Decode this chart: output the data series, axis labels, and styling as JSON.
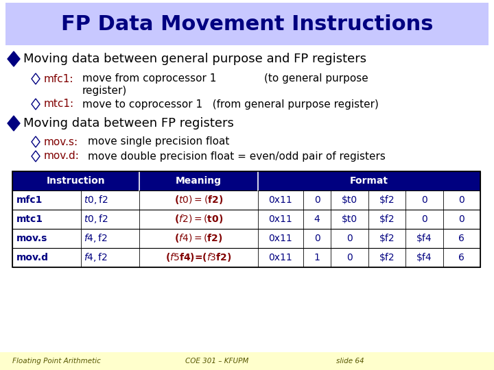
{
  "title": "FP Data Movement Instructions",
  "title_bg": "#c8c8ff",
  "slide_bg": "#ffffff",
  "footer_bg": "#ffffcc",
  "footer_text1": "Floating Point Arithmetic",
  "footer_text2": "COE 301 – KFUPM",
  "footer_text3": "slide 64",
  "dark_blue": "#000080",
  "dark_red": "#800000",
  "black": "#000000",
  "table_header_bg": "#000080",
  "table_rows": [
    {
      "instr": "mfc1",
      "operands": "$t0, $f2",
      "meaning": "($t0) = ($f2)",
      "f1": "0x11",
      "f2": "0",
      "f3": "$t0",
      "f4": "$f2",
      "f5": "0",
      "f6": "0"
    },
    {
      "instr": "mtc1",
      "operands": "$t0, $f2",
      "meaning": "($f2) = ($t0)",
      "f1": "0x11",
      "f2": "4",
      "f3": "$t0",
      "f4": "$f2",
      "f5": "0",
      "f6": "0"
    },
    {
      "instr": "mov.s",
      "operands": "$f4, $f2",
      "meaning": "($f4) = ($f2)",
      "f1": "0x11",
      "f2": "0",
      "f3": "0",
      "f4": "$f2",
      "f5": "$f4",
      "f6": "6"
    },
    {
      "instr": "mov.d",
      "operands": "$f4, $f2",
      "meaning": "($f5$f4)=($f3$f2)",
      "f1": "0x11",
      "f2": "1",
      "f3": "0",
      "f4": "$f2",
      "f5": "$f4",
      "f6": "6"
    }
  ]
}
